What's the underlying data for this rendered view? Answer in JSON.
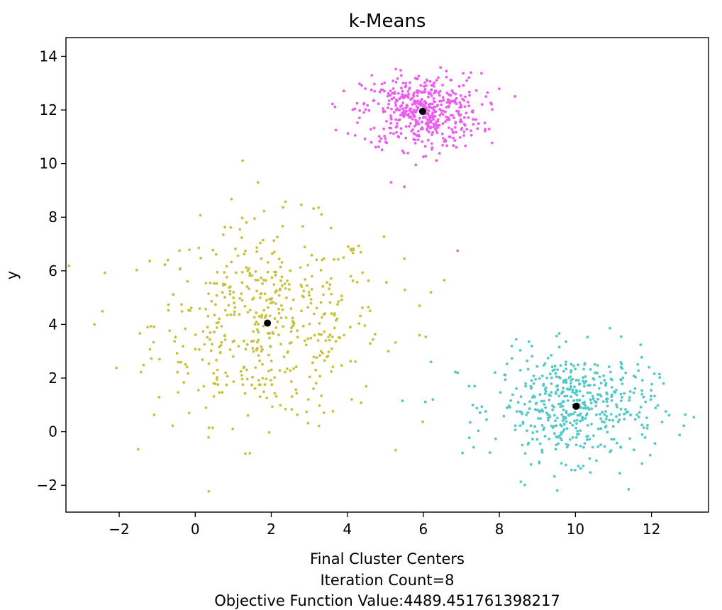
{
  "chart_data": {
    "type": "scatter",
    "title": "k-Means",
    "xlabel": [
      "Final Cluster Centers",
      "Iteration Count=8",
      "Objective Function Value:4489.451761398217"
    ],
    "ylabel": "y",
    "xlim": [
      -3.4,
      13.5
    ],
    "ylim": [
      -3.0,
      14.7
    ],
    "xticks": [
      -2,
      0,
      2,
      4,
      6,
      8,
      10,
      12
    ],
    "yticks": [
      -2,
      0,
      2,
      4,
      6,
      8,
      10,
      12,
      14
    ],
    "xtick_labels": [
      "−2",
      "0",
      "2",
      "4",
      "6",
      "8",
      "10",
      "12"
    ],
    "ytick_labels": [
      "−2",
      "0",
      "2",
      "4",
      "6",
      "8",
      "10",
      "12",
      "14"
    ],
    "grid": false,
    "legend": "none",
    "clusters": [
      {
        "color": "#c9c03c",
        "center": [
          1.9,
          4.05
        ],
        "spread": [
          1.5,
          1.85
        ],
        "count": 500
      },
      {
        "color": "#ec5cee",
        "center": [
          5.95,
          11.95
        ],
        "spread": [
          0.78,
          0.7
        ],
        "count": 500
      },
      {
        "color": "#52c8c8",
        "center": [
          10.0,
          0.95
        ],
        "spread": [
          1.05,
          1.0
        ],
        "count": 500
      }
    ],
    "stray_points": [
      {
        "x": 7.35,
        "y": 1.7,
        "color": "#52c8c8"
      },
      {
        "x": 7.2,
        "y": 1.7,
        "color": "#52c8c8"
      },
      {
        "x": 6.2,
        "y": 2.6,
        "color": "#52c8c8"
      },
      {
        "x": 6.25,
        "y": 1.2,
        "color": "#52c8c8"
      },
      {
        "x": 5.45,
        "y": 1.15,
        "color": "#52c8c8"
      },
      {
        "x": 6.9,
        "y": 2.2,
        "color": "#52c8c8"
      },
      {
        "x": 6.55,
        "y": 5.65,
        "color": "#c9c03c"
      },
      {
        "x": 6.2,
        "y": 5.2,
        "color": "#c9c03c"
      },
      {
        "x": 5.9,
        "y": 4.7,
        "color": "#c9c03c"
      },
      {
        "x": 5.9,
        "y": 3.6,
        "color": "#c9c03c"
      },
      {
        "x": 5.5,
        "y": 6.45,
        "color": "#c9c03c"
      },
      {
        "x": -2.65,
        "y": 4.0,
        "color": "#c9c03c"
      },
      {
        "x": 1.65,
        "y": 9.3,
        "color": "#c9c03c"
      },
      {
        "x": 6.9,
        "y": 6.75,
        "color": "#ec5cee"
      },
      {
        "x": 3.7,
        "y": 11.25,
        "color": "#ec5cee"
      },
      {
        "x": 5.15,
        "y": 9.3,
        "color": "#ec5cee"
      },
      {
        "x": 11.4,
        "y": -2.15,
        "color": "#52c8c8"
      }
    ],
    "centers": [
      {
        "x": 1.9,
        "y": 4.05
      },
      {
        "x": 5.98,
        "y": 11.95
      },
      {
        "x": 10.02,
        "y": 0.95
      }
    ]
  }
}
